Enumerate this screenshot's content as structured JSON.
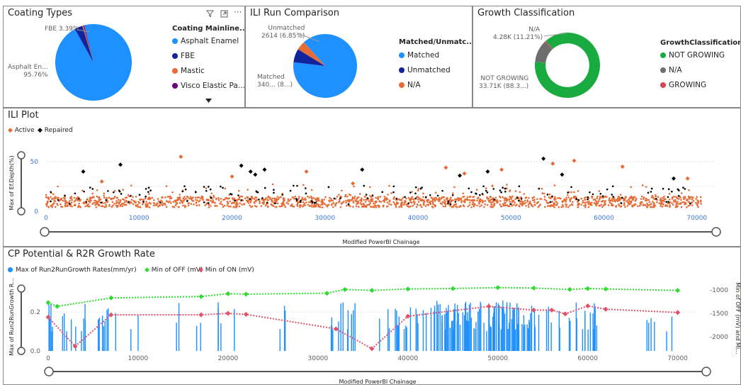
{
  "colors": {
    "asphalt": "#1e90ff",
    "fbe": "#12239e",
    "mastic": "#e66c37",
    "visco": "#6b007b",
    "matched": "#1e90ff",
    "unmatched": "#12239e",
    "na_orange": "#e66c37",
    "green": "#1aab40",
    "grey": "#6e6e6e",
    "red": "#d64550",
    "active": "#e66c37",
    "repaired": "#000000",
    "cp_off": "#2edc2e",
    "cp_on": "#e0526b"
  },
  "coating": {
    "title": "Coating Types",
    "legend_title": "Coating Mainline...",
    "legend": [
      {
        "label": "Asphalt Enamel",
        "color": "#1e90ff"
      },
      {
        "label": "FBE",
        "color": "#12239e"
      },
      {
        "label": "Mastic",
        "color": "#e66c37"
      },
      {
        "label": "Visco Elastic Pa...",
        "color": "#6b007b"
      }
    ],
    "label_fbe": "FBE 3.39%",
    "label_asphalt_1": "Asphalt En...",
    "label_asphalt_2": "95.76%",
    "slices": [
      95.76,
      3.39,
      0.5,
      0.35
    ],
    "filter_icon": "filter-icon",
    "focus_icon": "focus-mode-icon",
    "more_icon": "more-options-icon"
  },
  "ili_run": {
    "title": "ILI Run Comparison",
    "legend_title": "Matched/Unmatc...",
    "legend": [
      {
        "label": "Matched",
        "color": "#1e90ff"
      },
      {
        "label": "Unmatched",
        "color": "#12239e"
      },
      {
        "label": "N/A",
        "color": "#e66c37"
      }
    ],
    "label_unmatched_1": "Unmatched",
    "label_unmatched_2": "2614 (6.85%)",
    "label_matched_1": "Matched",
    "label_matched_2": "340... (8...)",
    "slices": [
      88.5,
      6.85,
      4.65
    ]
  },
  "growth": {
    "title": "Growth Classification",
    "legend_title": "GrowthClassification",
    "legend": [
      {
        "label": "NOT GROWING",
        "color": "#1aab40"
      },
      {
        "label": "N/A",
        "color": "#6e6e6e"
      },
      {
        "label": "GROWING",
        "color": "#d64550"
      }
    ],
    "label_na_1": "N/A",
    "label_na_2": "4.28K (11.21%)",
    "label_ng_1": "NOT GROWING",
    "label_ng_2": "33.71K (88.3...)",
    "slices": [
      88.3,
      11.21,
      0.49
    ]
  },
  "ili_plot": {
    "title": "ILI Plot",
    "legend": [
      {
        "label": "Active",
        "color": "#e66c37",
        "shape": "diamond"
      },
      {
        "label": "Repaired",
        "color": "#000000",
        "shape": "diamond"
      }
    ],
    "y_label": "Max of Ef.Depth(%)",
    "x_label": "Modified PowerBI Chainage"
  },
  "cp": {
    "title": "CP Potential & R2R Growth Rate",
    "legend": [
      {
        "label": "Max of Run2RunGrowth Rates(mm/yr)",
        "color": "#1e90ff"
      },
      {
        "label": "Min of OFF (mV)",
        "color": "#2edc2e"
      },
      {
        "label": "Min of ON (mV)",
        "color": "#e0526b"
      }
    ],
    "y_label": "Max of Run2RunGrowth R...",
    "y2_label": "Min of OFF (mV) and Mi...",
    "x_label": "Modified PowerBI Chainage"
  },
  "chart_data": [
    {
      "type": "pie",
      "title": "Coating Types",
      "categories": [
        "Asphalt Enamel",
        "FBE",
        "Mastic",
        "Visco Elastic Pa..."
      ],
      "values": [
        95.76,
        3.39,
        0.5,
        0.35
      ]
    },
    {
      "type": "pie",
      "title": "ILI Run Comparison",
      "categories": [
        "Matched",
        "Unmatched",
        "N/A"
      ],
      "values": [
        88.5,
        6.85,
        4.65
      ]
    },
    {
      "type": "pie",
      "title": "Growth Classification",
      "categories": [
        "NOT GROWING",
        "N/A",
        "GROWING"
      ],
      "values": [
        88.3,
        11.21,
        0.49
      ]
    },
    {
      "type": "scatter",
      "title": "ILI Plot",
      "xlabel": "Modified PowerBI Chainage",
      "ylabel": "Max of Ef.Depth(%)",
      "xlim": [
        0,
        72000
      ],
      "ylim": [
        0,
        60
      ],
      "x_ticks": [
        0,
        10000,
        20000,
        30000,
        40000,
        50000,
        60000,
        70000
      ],
      "y_ticks": [
        0,
        50
      ],
      "series": [
        {
          "name": "Active",
          "x": [
            14500,
            28000,
            43000,
            54500,
            56800,
            62000,
            69000,
            6000,
            20000,
            33000,
            45000,
            49000
          ],
          "y": [
            55,
            40,
            44,
            48,
            51,
            45,
            33,
            30,
            35,
            28,
            38,
            42
          ]
        },
        {
          "name": "Repaired",
          "x": [
            8000,
            21000,
            22000,
            22500,
            23500,
            34000,
            44500,
            47500,
            53500,
            55500,
            67500,
            4000
          ],
          "y": [
            47,
            46,
            40,
            37,
            42,
            42,
            36,
            40,
            53,
            37,
            33,
            40
          ]
        }
      ]
    },
    {
      "type": "line",
      "title": "CP Potential & R2R Growth Rate",
      "xlabel": "Modified PowerBI Chainage",
      "ylabel": "Max of Run2RunGrowth R...",
      "y2label": "Min of OFF (mV) and Mi...",
      "xlim": [
        0,
        72000
      ],
      "ylim": [
        0,
        0.35
      ],
      "y2lim": [
        -2300,
        -850
      ],
      "x_ticks": [
        0,
        10000,
        20000,
        30000,
        40000,
        50000,
        60000,
        70000
      ],
      "y_ticks": [
        0.0,
        0.2
      ],
      "y2_ticks": [
        -1000,
        -1500,
        -2000
      ],
      "series": [
        {
          "name": "Min of OFF (mV)",
          "x": [
            0,
            1000,
            7000,
            17000,
            20000,
            22000,
            31000,
            33000,
            36000,
            40000,
            45000,
            50000,
            54000,
            58000,
            60000,
            62000,
            70000
          ],
          "y": [
            -1270,
            -1350,
            -1170,
            -1140,
            -1080,
            -1090,
            -1070,
            -990,
            -1010,
            -980,
            -970,
            -950,
            -960,
            -990,
            -970,
            -980,
            -1010
          ]
        },
        {
          "name": "Min of ON (mV)",
          "x": [
            0,
            3000,
            7000,
            17000,
            20000,
            22000,
            32000,
            36000,
            40000,
            49000,
            54000,
            56000,
            57500,
            60000,
            62000,
            70000
          ],
          "y": [
            -1580,
            -2200,
            -1530,
            -1530,
            -1500,
            -1520,
            -1830,
            -2250,
            -1560,
            -1350,
            -1430,
            -1430,
            -1510,
            -1340,
            -1410,
            -1480
          ]
        }
      ]
    }
  ]
}
